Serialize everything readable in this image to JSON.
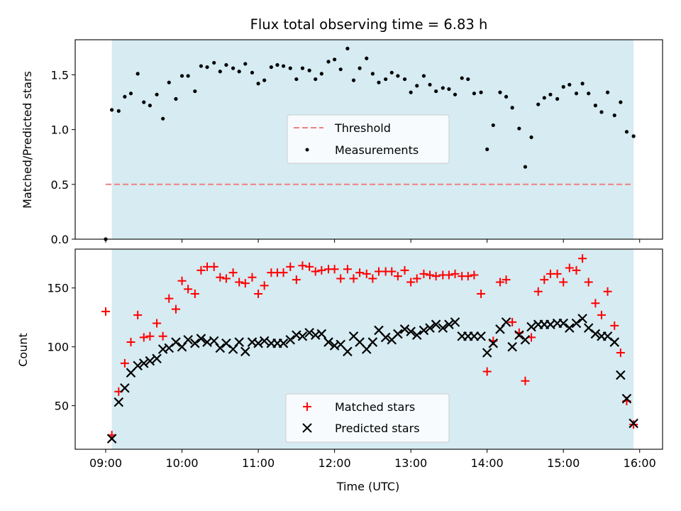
{
  "chart_data": {
    "type": "scatter",
    "title": "Flux total observing time = 6.83 h",
    "xlabel": "Time (UTC)",
    "x_ticks": [
      "09:00",
      "10:00",
      "11:00",
      "12:00",
      "13:00",
      "14:00",
      "15:00",
      "16:00"
    ],
    "x_range_hours": [
      8.6,
      16.3
    ],
    "observing_window_hours": [
      9.08,
      15.92
    ],
    "shade_color": "#add8e6",
    "top": {
      "ylabel": "Matched/Predicted stars",
      "ylim": [
        0,
        1.82
      ],
      "yticks": [
        "0.0",
        "0.5",
        "1.0",
        "1.5"
      ],
      "threshold": {
        "name": "Threshold",
        "value": 0.5,
        "color": "#f08080"
      },
      "legend": [
        "Threshold",
        "Measurements"
      ],
      "measurements": {
        "name": "Measurements",
        "x": [
          9.0,
          9.08,
          9.17,
          9.25,
          9.33,
          9.42,
          9.5,
          9.58,
          9.67,
          9.75,
          9.83,
          9.92,
          10.0,
          10.08,
          10.17,
          10.25,
          10.33,
          10.42,
          10.5,
          10.58,
          10.67,
          10.75,
          10.83,
          10.92,
          11.0,
          11.08,
          11.17,
          11.25,
          11.33,
          11.42,
          11.5,
          11.58,
          11.67,
          11.75,
          11.83,
          11.92,
          12.0,
          12.08,
          12.17,
          12.25,
          12.33,
          12.42,
          12.5,
          12.58,
          12.67,
          12.75,
          12.83,
          12.92,
          13.0,
          13.08,
          13.17,
          13.25,
          13.33,
          13.42,
          13.5,
          13.58,
          13.67,
          13.75,
          13.83,
          13.92,
          14.0,
          14.08,
          14.17,
          14.25,
          14.33,
          14.42,
          14.5,
          14.58,
          14.67,
          14.75,
          14.83,
          14.92,
          15.0,
          15.08,
          15.17,
          15.25,
          15.33,
          15.42,
          15.5,
          15.58,
          15.67,
          15.75,
          15.83,
          15.92
        ],
        "y": [
          0.0,
          1.18,
          1.17,
          1.3,
          1.33,
          1.51,
          1.25,
          1.22,
          1.32,
          1.1,
          1.43,
          1.28,
          1.49,
          1.49,
          1.35,
          1.58,
          1.57,
          1.61,
          1.53,
          1.59,
          1.56,
          1.53,
          1.6,
          1.52,
          1.42,
          1.45,
          1.57,
          1.59,
          1.58,
          1.56,
          1.46,
          1.56,
          1.54,
          1.46,
          1.51,
          1.62,
          1.64,
          1.55,
          1.74,
          1.45,
          1.56,
          1.65,
          1.51,
          1.43,
          1.46,
          1.52,
          1.49,
          1.46,
          1.34,
          1.4,
          1.49,
          1.41,
          1.35,
          1.38,
          1.37,
          1.32,
          1.47,
          1.46,
          1.33,
          1.34,
          0.82,
          1.04,
          1.34,
          1.3,
          1.2,
          1.01,
          0.66,
          0.93,
          1.23,
          1.29,
          1.32,
          1.28,
          1.39,
          1.41,
          1.33,
          1.42,
          1.33,
          1.22,
          1.16,
          1.34,
          1.13,
          1.25,
          0.98,
          0.94
        ]
      }
    },
    "bottom": {
      "ylabel": "Count",
      "ylim": [
        13,
        183
      ],
      "yticks": [
        "50",
        "100",
        "150"
      ],
      "legend": [
        "Matched stars",
        "Predicted stars"
      ],
      "series": [
        {
          "name": "Matched stars",
          "marker": "plus",
          "color": "#ff0000",
          "x": [
            9.0,
            9.08,
            9.17,
            9.25,
            9.33,
            9.42,
            9.5,
            9.58,
            9.67,
            9.75,
            9.83,
            9.92,
            10.0,
            10.08,
            10.17,
            10.25,
            10.33,
            10.42,
            10.5,
            10.58,
            10.67,
            10.75,
            10.83,
            10.92,
            11.0,
            11.08,
            11.17,
            11.25,
            11.33,
            11.42,
            11.5,
            11.58,
            11.67,
            11.75,
            11.83,
            11.92,
            12.0,
            12.08,
            12.17,
            12.25,
            12.33,
            12.42,
            12.5,
            12.58,
            12.67,
            12.75,
            12.83,
            12.92,
            13.0,
            13.08,
            13.17,
            13.25,
            13.33,
            13.42,
            13.5,
            13.58,
            13.67,
            13.75,
            13.83,
            13.92,
            14.0,
            14.08,
            14.17,
            14.25,
            14.33,
            14.42,
            14.5,
            14.58,
            14.67,
            14.75,
            14.83,
            14.92,
            15.0,
            15.08,
            15.17,
            15.25,
            15.33,
            15.42,
            15.5,
            15.58,
            15.67,
            15.75,
            15.83,
            15.92
          ],
          "y": [
            130,
            25,
            62,
            86,
            104,
            127,
            108,
            109,
            120,
            109,
            141,
            132,
            156,
            149,
            145,
            165,
            168,
            168,
            159,
            158,
            163,
            155,
            154,
            159,
            145,
            152,
            163,
            163,
            163,
            168,
            157,
            169,
            168,
            164,
            165,
            166,
            166,
            158,
            166,
            158,
            163,
            162,
            158,
            164,
            164,
            164,
            160,
            165,
            155,
            158,
            162,
            161,
            160,
            161,
            161,
            162,
            160,
            160,
            161,
            145,
            79,
            105,
            155,
            157,
            121,
            112,
            71,
            108,
            147,
            157,
            162,
            162,
            155,
            167,
            165,
            175,
            155,
            137,
            127,
            147,
            118,
            95,
            54,
            34
          ]
        },
        {
          "name": "Predicted stars",
          "marker": "x",
          "color": "#000000",
          "x": [
            9.08,
            9.17,
            9.25,
            9.33,
            9.42,
            9.5,
            9.58,
            9.67,
            9.75,
            9.83,
            9.92,
            10.0,
            10.08,
            10.17,
            10.25,
            10.33,
            10.42,
            10.5,
            10.58,
            10.67,
            10.75,
            10.83,
            10.92,
            11.0,
            11.08,
            11.17,
            11.25,
            11.33,
            11.42,
            11.5,
            11.58,
            11.67,
            11.75,
            11.83,
            11.92,
            12.0,
            12.08,
            12.17,
            12.25,
            12.33,
            12.42,
            12.5,
            12.58,
            12.67,
            12.75,
            12.83,
            12.92,
            13.0,
            13.08,
            13.17,
            13.25,
            13.33,
            13.42,
            13.5,
            13.58,
            13.67,
            13.75,
            13.83,
            13.92,
            14.0,
            14.08,
            14.17,
            14.25,
            14.33,
            14.42,
            14.5,
            14.58,
            14.67,
            14.75,
            14.83,
            14.92,
            15.0,
            15.08,
            15.17,
            15.25,
            15.33,
            15.42,
            15.5,
            15.58,
            15.67,
            15.75,
            15.83,
            15.92
          ],
          "y": [
            22,
            53,
            65,
            78,
            84,
            86,
            88,
            90,
            98,
            99,
            104,
            100,
            106,
            103,
            107,
            104,
            105,
            99,
            103,
            98,
            104,
            96,
            104,
            103,
            105,
            103,
            103,
            103,
            106,
            110,
            109,
            112,
            110,
            111,
            104,
            101,
            102,
            96,
            109,
            104,
            98,
            104,
            114,
            108,
            106,
            111,
            115,
            113,
            110,
            114,
            116,
            119,
            116,
            119,
            121,
            109,
            109,
            109,
            109,
            95,
            103,
            115,
            121,
            100,
            110,
            106,
            117,
            119,
            119,
            119,
            120,
            120,
            116,
            120,
            124,
            116,
            111,
            109,
            109,
            104,
            76,
            56,
            35
          ]
        }
      ]
    }
  }
}
